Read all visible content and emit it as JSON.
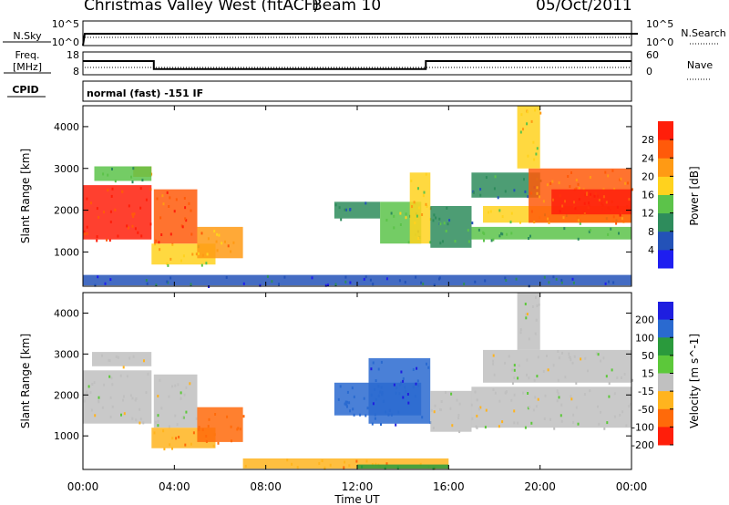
{
  "header": {
    "site": "Christmas Valley West (fitACF)",
    "beam": "Beam 10",
    "date": "05/Oct/2011"
  },
  "status_panels": {
    "nsky_label": "N.Sky",
    "nsky_ticks": [
      "10^5",
      "10^0"
    ],
    "nsearch_label": "N.Search",
    "nsearch_ticks": [
      "10^5",
      "10^0"
    ],
    "freq_label_line1": "Freq.",
    "freq_label_line2": "[MHz]",
    "freq_ticks": [
      "18",
      "8"
    ],
    "nave_label": "Nave",
    "nave_ticks": [
      "60",
      "0"
    ],
    "cpid_label": "CPID",
    "cpid_value": "normal (fast) -151 IF",
    "freq_series": {
      "x_hours": [
        0,
        3.1,
        3.1,
        15.0,
        15.0,
        24
      ],
      "mhz": [
        14,
        14,
        10.5,
        10.5,
        14,
        14
      ]
    },
    "nave_series": {
      "x_hours": [
        0,
        24
      ],
      "value": [
        14,
        14
      ]
    }
  },
  "chart_data": [
    {
      "type": "heatmap",
      "title": "",
      "xlabel": "",
      "ylabel": "Slant Range [km]",
      "x_ticks": [
        "00:00",
        "04:00",
        "08:00",
        "12:00",
        "16:00",
        "20:00",
        "00:00"
      ],
      "x_range_hours": [
        0,
        24
      ],
      "y_ticks": [
        1000,
        2000,
        3000,
        4000
      ],
      "ylim": [
        180,
        4500
      ],
      "colorbar_label": "Power [dB]",
      "colorbar_ticks": [
        4,
        8,
        12,
        16,
        20,
        24,
        28
      ],
      "colorbar_colors": [
        "#1e1ef0",
        "#2352b8",
        "#2e8c5c",
        "#5cc34a",
        "#ffd21e",
        "#ff9a14",
        "#ff5a0a",
        "#ff1e0a"
      ],
      "vmin": 0,
      "vmax": 30,
      "regions": [
        {
          "t0": 0.0,
          "t1": 3.0,
          "r0": 1300,
          "r1": 2600,
          "value": 28
        },
        {
          "t0": 2.2,
          "t1": 3.0,
          "r0": 2800,
          "r1": 3050,
          "value": 22
        },
        {
          "t0": 3.1,
          "t1": 5.0,
          "r0": 1200,
          "r1": 2500,
          "value": 27
        },
        {
          "t0": 3.0,
          "t1": 5.8,
          "r0": 700,
          "r1": 1200,
          "value": 18
        },
        {
          "t0": 5.0,
          "t1": 7.0,
          "r0": 850,
          "r1": 1600,
          "value": 21
        },
        {
          "t0": 0.5,
          "t1": 3.0,
          "r0": 2700,
          "r1": 3050,
          "value": 12
        },
        {
          "t0": 11.0,
          "t1": 13.0,
          "r0": 1800,
          "r1": 2200,
          "value": 8
        },
        {
          "t0": 13.0,
          "t1": 14.8,
          "r0": 1200,
          "r1": 2200,
          "value": 14
        },
        {
          "t0": 14.3,
          "t1": 15.2,
          "r0": 1200,
          "r1": 2900,
          "value": 17
        },
        {
          "t0": 15.2,
          "t1": 17.0,
          "r0": 1100,
          "r1": 2100,
          "value": 10
        },
        {
          "t0": 17.0,
          "t1": 24.0,
          "r0": 1300,
          "r1": 1600,
          "value": 12
        },
        {
          "t0": 17.5,
          "t1": 24.0,
          "r0": 1700,
          "r1": 2100,
          "value": 16
        },
        {
          "t0": 17.0,
          "t1": 20.0,
          "r0": 2300,
          "r1": 2900,
          "value": 10
        },
        {
          "t0": 19.5,
          "t1": 24.0,
          "r0": 1700,
          "r1": 3000,
          "value": 24
        },
        {
          "t0": 20.5,
          "t1": 24.0,
          "r0": 1900,
          "r1": 2500,
          "value": 28
        },
        {
          "t0": 19.0,
          "t1": 20.0,
          "r0": 3000,
          "r1": 4500,
          "value": 18
        },
        {
          "t0": 0.0,
          "t1": 24.0,
          "r0": 200,
          "r1": 450,
          "value": 6
        }
      ]
    },
    {
      "type": "heatmap",
      "title": "",
      "xlabel": "Time UT",
      "ylabel": "Slant Range [km]",
      "x_ticks": [
        "00:00",
        "04:00",
        "08:00",
        "12:00",
        "16:00",
        "20:00",
        "00:00"
      ],
      "x_range_hours": [
        0,
        24
      ],
      "y_ticks": [
        1000,
        2000,
        3000,
        4000
      ],
      "ylim": [
        180,
        4500
      ],
      "colorbar_label": "Velocity [m s^-1]",
      "colorbar_ticks": [
        200,
        100,
        50,
        15,
        -15,
        -50,
        -100,
        -200
      ],
      "colorbar_colors": [
        "#1e1ee0",
        "#2a6ad0",
        "#2a9a3c",
        "#5cc83a",
        "#c0c0c0",
        "#ffb41e",
        "#ff6a0a",
        "#ff1e0a"
      ],
      "regions": [
        {
          "t0": 0.0,
          "t1": 3.0,
          "r0": 1300,
          "r1": 2600,
          "value": 0
        },
        {
          "t0": 0.4,
          "t1": 3.0,
          "r0": 2700,
          "r1": 3050,
          "value": 0
        },
        {
          "t0": 3.1,
          "t1": 5.0,
          "r0": 1200,
          "r1": 2500,
          "value": 0
        },
        {
          "t0": 3.0,
          "t1": 5.8,
          "r0": 700,
          "r1": 1200,
          "value": -40
        },
        {
          "t0": 5.0,
          "t1": 7.0,
          "r0": 850,
          "r1": 1700,
          "value": -70
        },
        {
          "t0": 11.0,
          "t1": 14.8,
          "r0": 1500,
          "r1": 2300,
          "value": 180
        },
        {
          "t0": 12.5,
          "t1": 15.2,
          "r0": 1300,
          "r1": 2900,
          "value": 190
        },
        {
          "t0": 15.2,
          "t1": 17.0,
          "r0": 1100,
          "r1": 2100,
          "value": 0
        },
        {
          "t0": 17.0,
          "t1": 24.0,
          "r0": 1200,
          "r1": 2200,
          "value": 0
        },
        {
          "t0": 17.5,
          "t1": 24.0,
          "r0": 2300,
          "r1": 3100,
          "value": 0
        },
        {
          "t0": 19.0,
          "t1": 20.0,
          "r0": 3100,
          "r1": 4500,
          "value": 0
        },
        {
          "t0": 7.0,
          "t1": 16.0,
          "r0": 200,
          "r1": 450,
          "value": -40
        },
        {
          "t0": 12.0,
          "t1": 16.0,
          "r0": 200,
          "r1": 300,
          "value": 70
        }
      ]
    }
  ]
}
